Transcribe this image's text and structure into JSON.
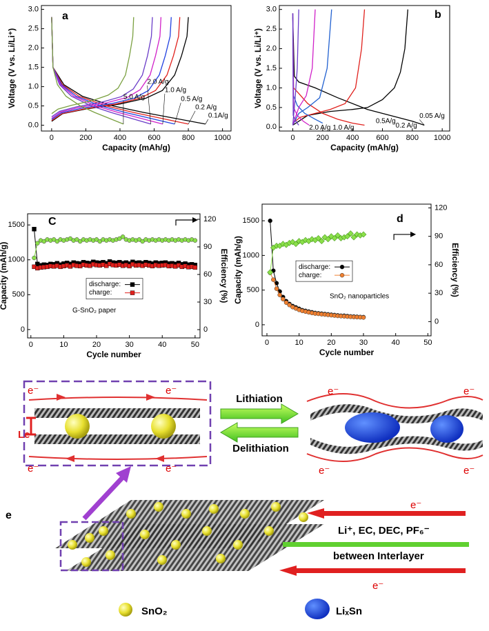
{
  "chart_data": [
    {
      "type": "line",
      "panel_label": "a",
      "xlabel": "Capacity (mAh/g)",
      "ylabel": "Voltage (V vs. Li/Li⁺)",
      "xlim": [
        -60,
        1050
      ],
      "ylim": [
        -0.15,
        3.1
      ],
      "xticks": [
        0,
        200,
        400,
        600,
        800,
        1000
      ],
      "yticks": [
        {
          "value": 0,
          "label": "0.0"
        },
        0.5,
        {
          "value": 1,
          "label": "1.0"
        },
        1.5,
        {
          "value": 2,
          "label": "2.0"
        },
        2.5,
        {
          "value": 3,
          "label": "3.0"
        }
      ],
      "label_curves": true,
      "series": [
        {
          "name": "0.1A/g",
          "color": "#000000",
          "x": [
            0,
            8,
            72,
            180,
            360,
            540,
            720,
            900,
            null,
            0,
            64,
            200,
            400,
            552,
            648,
            720,
            760,
            792,
            800
          ],
          "values": [
            2.8,
            1.5,
            1.05,
            0.75,
            0.5,
            0.33,
            0.18,
            0.03,
            null,
            0.1,
            0.3,
            0.42,
            0.55,
            0.7,
            0.9,
            1.3,
            1.8,
            2.3,
            2.8
          ]
        },
        {
          "name": "0.2 A/g",
          "color": "#e0201c",
          "x": [
            0,
            8,
            64,
            160,
            320,
            480,
            640,
            800,
            null,
            0,
            60,
            188,
            375,
            518,
            608,
            675,
            713,
            743,
            750
          ],
          "values": [
            2.8,
            1.5,
            1.05,
            0.75,
            0.5,
            0.33,
            0.18,
            0.03,
            null,
            0.12,
            0.3,
            0.42,
            0.55,
            0.7,
            0.9,
            1.3,
            1.8,
            2.3,
            2.8
          ]
        },
        {
          "name": "0.5 A/g",
          "color": "#2040e0",
          "x": [
            0,
            8,
            58,
            144,
            288,
            432,
            576,
            720,
            null,
            0,
            56,
            175,
            350,
            483,
            567,
            630,
            665,
            693,
            700
          ],
          "values": [
            2.8,
            1.5,
            1.05,
            0.75,
            0.5,
            0.33,
            0.18,
            0.03,
            null,
            0.15,
            0.32,
            0.44,
            0.56,
            0.7,
            0.9,
            1.3,
            1.8,
            2.3,
            2.8
          ]
        },
        {
          "name": "1.0 A/g",
          "color": "#d020c8",
          "x": [
            0,
            8,
            52,
            130,
            260,
            390,
            520,
            650,
            null,
            0,
            51,
            160,
            320,
            442,
            518,
            576,
            608,
            634,
            640
          ],
          "values": [
            2.8,
            1.5,
            1.05,
            0.75,
            0.5,
            0.33,
            0.18,
            0.03,
            null,
            0.18,
            0.34,
            0.46,
            0.58,
            0.72,
            0.92,
            1.3,
            1.8,
            2.3,
            2.8
          ]
        },
        {
          "name": "2.0 A/g",
          "color": "#6a3cc8",
          "x": [
            0,
            8,
            46,
            116,
            232,
            348,
            464,
            580,
            null,
            0,
            47,
            148,
            295,
            407,
            478,
            531,
            561,
            584,
            590
          ],
          "values": [
            2.8,
            1.5,
            1.05,
            0.75,
            0.5,
            0.33,
            0.18,
            0.03,
            null,
            0.22,
            0.36,
            0.48,
            0.6,
            0.74,
            0.94,
            1.3,
            1.8,
            2.3,
            2.8
          ]
        },
        {
          "name": "5.0 A/g",
          "color": "#7aa040",
          "x": [
            0,
            8,
            34,
            84,
            168,
            252,
            336,
            420,
            null,
            0,
            38,
            120,
            240,
            331,
            389,
            432,
            456,
            475,
            480
          ],
          "values": [
            2.8,
            1.5,
            1.05,
            0.75,
            0.5,
            0.33,
            0.18,
            0.03,
            null,
            0.3,
            0.42,
            0.52,
            0.64,
            0.78,
            0.96,
            1.3,
            1.8,
            2.3,
            2.8
          ]
        }
      ]
    },
    {
      "type": "line",
      "panel_label": "b",
      "xlabel": "Capacity (mAh/g)",
      "ylabel": "Voltage (V vs. Li/Li⁺)",
      "xlim": [
        -90,
        1050
      ],
      "ylim": [
        -0.1,
        3.1
      ],
      "xticks": [
        0,
        200,
        400,
        600,
        800,
        1000
      ],
      "yticks": [
        {
          "value": 0,
          "label": "0.0"
        },
        0.5,
        {
          "value": 1,
          "label": "1.0"
        },
        1.5,
        {
          "value": 2,
          "label": "2.0"
        },
        2.5,
        {
          "value": 3,
          "label": "3.0"
        }
      ],
      "label_curves": true,
      "series": [
        {
          "name": "0.05 A/g",
          "color": "#000000",
          "x": [
            0,
            10,
            40,
            150,
            300,
            500,
            650,
            800,
            880,
            null,
            0,
            100,
            250,
            400,
            500,
            600,
            680,
            720,
            750,
            770
          ],
          "values": [
            2.8,
            1.3,
            1.15,
            1.0,
            0.75,
            0.45,
            0.3,
            0.15,
            0.05,
            null,
            0.05,
            0.3,
            0.4,
            0.45,
            0.5,
            0.7,
            1.0,
            1.4,
            2.0,
            3.0
          ]
        },
        {
          "name": "0.2 A/g",
          "color": "#e0201c",
          "x": [
            0,
            5,
            30,
            100,
            200,
            300,
            400,
            480,
            null,
            0,
            50,
            150,
            250,
            350,
            420,
            460,
            480
          ],
          "values": [
            2.9,
            1.0,
            0.9,
            0.6,
            0.35,
            0.2,
            0.1,
            0.05,
            null,
            0.1,
            0.25,
            0.35,
            0.45,
            0.6,
            1.0,
            2.0,
            3.0
          ]
        },
        {
          "name": "0.5A/g",
          "color": "#2060d0",
          "x": [
            0,
            5,
            30,
            80,
            150,
            200,
            null,
            0,
            40,
            100,
            180,
            230,
            260
          ],
          "values": [
            2.9,
            0.8,
            0.55,
            0.35,
            0.2,
            0.1,
            null,
            0.05,
            0.35,
            0.5,
            0.75,
            1.5,
            3.0
          ]
        },
        {
          "name": "1.0 A/g",
          "color": "#d020c8",
          "x": [
            0,
            5,
            30,
            70,
            110,
            null,
            0,
            40,
            90,
            130,
            150
          ],
          "values": [
            2.9,
            0.5,
            0.3,
            0.15,
            0.05,
            null,
            0.05,
            0.5,
            0.8,
            1.5,
            3.0
          ]
        },
        {
          "name": "2.0 A/g",
          "color": "#6a3cc8",
          "x": [
            0,
            3,
            20,
            40,
            null,
            0,
            15,
            30,
            40
          ],
          "values": [
            2.9,
            0.3,
            0.15,
            0.05,
            null,
            0.05,
            0.7,
            1.5,
            3.0
          ]
        }
      ]
    },
    {
      "type": "line",
      "panel_label": "C",
      "xlabel": "Cycle number",
      "ylabel": "Capacity (mAh/g)",
      "y2label": "Efficiency (%)",
      "annotation": "G-SnO₂ paper",
      "legend": "center",
      "xlim": [
        -1,
        51.5
      ],
      "ylim": [
        -120,
        1660
      ],
      "y2lim": [
        -9,
        126
      ],
      "xticks": [
        0,
        10,
        20,
        30,
        40,
        50
      ],
      "yticks": [
        0,
        500,
        1000,
        1500
      ],
      "y2ticks": [
        0,
        30,
        60,
        90,
        120
      ],
      "x": [
        1,
        2,
        3,
        4,
        5,
        6,
        7,
        8,
        9,
        10,
        11,
        12,
        13,
        14,
        15,
        16,
        17,
        18,
        19,
        20,
        21,
        22,
        23,
        24,
        25,
        26,
        27,
        28,
        29,
        30,
        31,
        32,
        33,
        34,
        35,
        36,
        37,
        38,
        39,
        40,
        41,
        42,
        43,
        44,
        45,
        46,
        47,
        48,
        49,
        50
      ],
      "series": [
        {
          "name": "discharge:",
          "color": "#000000",
          "marker": "square",
          "values": [
            1440,
            940,
            920,
            930,
            925,
            940,
            935,
            950,
            930,
            945,
            955,
            940,
            960,
            950,
            945,
            965,
            955,
            950,
            970,
            960,
            955,
            965,
            950,
            975,
            960,
            955,
            965,
            950,
            960,
            945,
            970,
            955,
            960,
            950,
            965,
            955,
            945,
            960,
            950,
            955,
            960,
            945,
            950,
            940,
            955,
            935,
            945,
            930,
            935,
            925
          ]
        },
        {
          "name": "charge:",
          "color": "#e0201c",
          "marker": "square",
          "values": [
            900,
            880,
            890,
            895,
            900,
            910,
            905,
            915,
            900,
            910,
            920,
            905,
            925,
            915,
            910,
            930,
            920,
            915,
            935,
            925,
            920,
            930,
            915,
            940,
            925,
            920,
            930,
            915,
            925,
            910,
            935,
            920,
            925,
            915,
            930,
            920,
            910,
            925,
            915,
            920,
            925,
            910,
            915,
            905,
            920,
            900,
            910,
            895,
            900,
            890
          ]
        },
        {
          "color": "#8be04a",
          "marker": "circle",
          "axis": "y2",
          "values": [
            78,
            94,
            97,
            96,
            98,
            97,
            98,
            96,
            98,
            97,
            98,
            99,
            97,
            98,
            96,
            98,
            97,
            98,
            97,
            98,
            96,
            98,
            97,
            98,
            97,
            98,
            99,
            101,
            98,
            97,
            98,
            97,
            98,
            96,
            98,
            97,
            98,
            97,
            98,
            97,
            98,
            97,
            98,
            97,
            98,
            97,
            98,
            97,
            98,
            97
          ]
        }
      ]
    },
    {
      "type": "line",
      "panel_label": "d",
      "xlabel": "Cycle number",
      "ylabel": "Capacity (mAh/g)",
      "y2label": "Efficiency (%)",
      "annotation": "SnO₂ nanoparticles",
      "legend": "center-left",
      "xlim": [
        -1.5,
        51
      ],
      "ylim": [
        -160,
        1740
      ],
      "y2lim": [
        -15,
        124
      ],
      "xticks": [
        0,
        10,
        20,
        30,
        40,
        50
      ],
      "yticks": [
        0,
        500,
        1000,
        1500
      ],
      "y2ticks": [
        0,
        30,
        60,
        90,
        120
      ],
      "x": [
        1,
        2,
        3,
        4,
        5,
        6,
        7,
        8,
        9,
        10,
        11,
        12,
        13,
        14,
        15,
        16,
        17,
        18,
        19,
        20,
        21,
        22,
        23,
        24,
        25,
        26,
        27,
        28,
        29,
        30
      ],
      "series": [
        {
          "name": "discharge:",
          "color": "#000000",
          "marker": "circle",
          "values": [
            1500,
            780,
            600,
            480,
            400,
            340,
            300,
            270,
            250,
            230,
            210,
            200,
            190,
            180,
            170,
            165,
            160,
            155,
            150,
            145,
            140,
            135,
            130,
            130,
            125,
            120,
            118,
            115,
            112,
            110
          ]
        },
        {
          "name": "charge:",
          "color": "#f08030",
          "marker": "circle",
          "values": [
            750,
            650,
            520,
            430,
            370,
            320,
            285,
            255,
            235,
            215,
            200,
            190,
            180,
            170,
            162,
            158,
            152,
            148,
            143,
            138,
            133,
            128,
            125,
            122,
            118,
            115,
            112,
            110,
            108,
            105
          ]
        },
        {
          "color": "#8be04a",
          "marker": "diamond",
          "axis": "y2",
          "values": [
            52,
            78,
            80,
            80,
            82,
            81,
            83,
            84,
            82,
            85,
            84,
            86,
            85,
            87,
            86,
            88,
            85,
            89,
            87,
            90,
            88,
            91,
            88,
            89,
            90,
            93,
            89,
            92,
            91,
            92
          ]
        }
      ]
    }
  ],
  "diagram": {
    "label": "e",
    "lithiation": "Lithiation",
    "delithiation": "Delithiation",
    "spacing": "Le",
    "electrons": [
      "e⁻",
      "e⁻",
      "e⁻",
      "e⁻",
      "e⁻",
      "e⁻",
      "e⁻",
      "e⁻",
      "e⁻",
      "e⁻"
    ],
    "electrolyte": "Li⁺, EC, DEC, PF₆⁻",
    "interlayer": "between Interlayer",
    "legend": [
      {
        "label": "SnO₂"
      },
      {
        "label": "LiₓSn"
      }
    ]
  }
}
